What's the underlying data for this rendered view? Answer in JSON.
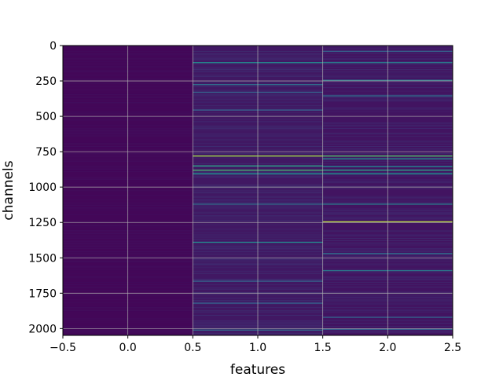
{
  "chart_data": {
    "type": "heatmap",
    "title": "",
    "xlabel": "features",
    "ylabel": "channels",
    "xlim": [
      -0.5,
      2.5
    ],
    "ylim": [
      2048,
      0
    ],
    "y_inverted": true,
    "grid": true,
    "colormap": "viridis",
    "columns": [
      0,
      1,
      2
    ],
    "n_rows": 2048,
    "x_ticks": [
      "−0.5",
      "0.0",
      "0.5",
      "1.0",
      "1.5",
      "2.0",
      "2.5"
    ],
    "x_tick_values": [
      -0.5,
      0.0,
      0.5,
      1.0,
      1.5,
      2.0,
      2.5
    ],
    "y_ticks": [
      "0",
      "250",
      "500",
      "750",
      "1000",
      "1250",
      "1500",
      "1750",
      "2000"
    ],
    "y_tick_values": [
      0,
      250,
      500,
      750,
      1000,
      1250,
      1500,
      1750,
      2000
    ],
    "column_baseline": [
      0.02,
      0.07,
      0.06
    ],
    "highlight_rows": [
      {
        "column": 1,
        "channel": 120,
        "value": 0.45
      },
      {
        "column": 1,
        "channel": 275,
        "value": 0.35
      },
      {
        "column": 1,
        "channel": 330,
        "value": 0.3
      },
      {
        "column": 1,
        "channel": 455,
        "value": 0.3
      },
      {
        "column": 1,
        "channel": 780,
        "value": 0.85
      },
      {
        "column": 1,
        "channel": 850,
        "value": 0.55
      },
      {
        "column": 1,
        "channel": 880,
        "value": 0.65
      },
      {
        "column": 1,
        "channel": 905,
        "value": 0.5
      },
      {
        "column": 1,
        "channel": 1120,
        "value": 0.35
      },
      {
        "column": 1,
        "channel": 1390,
        "value": 0.45
      },
      {
        "column": 1,
        "channel": 1665,
        "value": 0.3
      },
      {
        "column": 1,
        "channel": 1820,
        "value": 0.3
      },
      {
        "column": 1,
        "channel": 2010,
        "value": 0.35
      },
      {
        "column": 2,
        "channel": 40,
        "value": 0.3
      },
      {
        "column": 2,
        "channel": 120,
        "value": 0.4
      },
      {
        "column": 2,
        "channel": 245,
        "value": 0.4
      },
      {
        "column": 2,
        "channel": 355,
        "value": 0.35
      },
      {
        "column": 2,
        "channel": 780,
        "value": 0.7
      },
      {
        "column": 2,
        "channel": 800,
        "value": 0.45
      },
      {
        "column": 2,
        "channel": 855,
        "value": 0.45
      },
      {
        "column": 2,
        "channel": 880,
        "value": 0.55
      },
      {
        "column": 2,
        "channel": 905,
        "value": 0.5
      },
      {
        "column": 2,
        "channel": 1120,
        "value": 0.4
      },
      {
        "column": 2,
        "channel": 1245,
        "value": 0.9
      },
      {
        "column": 2,
        "channel": 1470,
        "value": 0.35
      },
      {
        "column": 2,
        "channel": 1590,
        "value": 0.4
      },
      {
        "column": 2,
        "channel": 1920,
        "value": 0.3
      },
      {
        "column": 2,
        "channel": 2005,
        "value": 0.3
      }
    ]
  }
}
